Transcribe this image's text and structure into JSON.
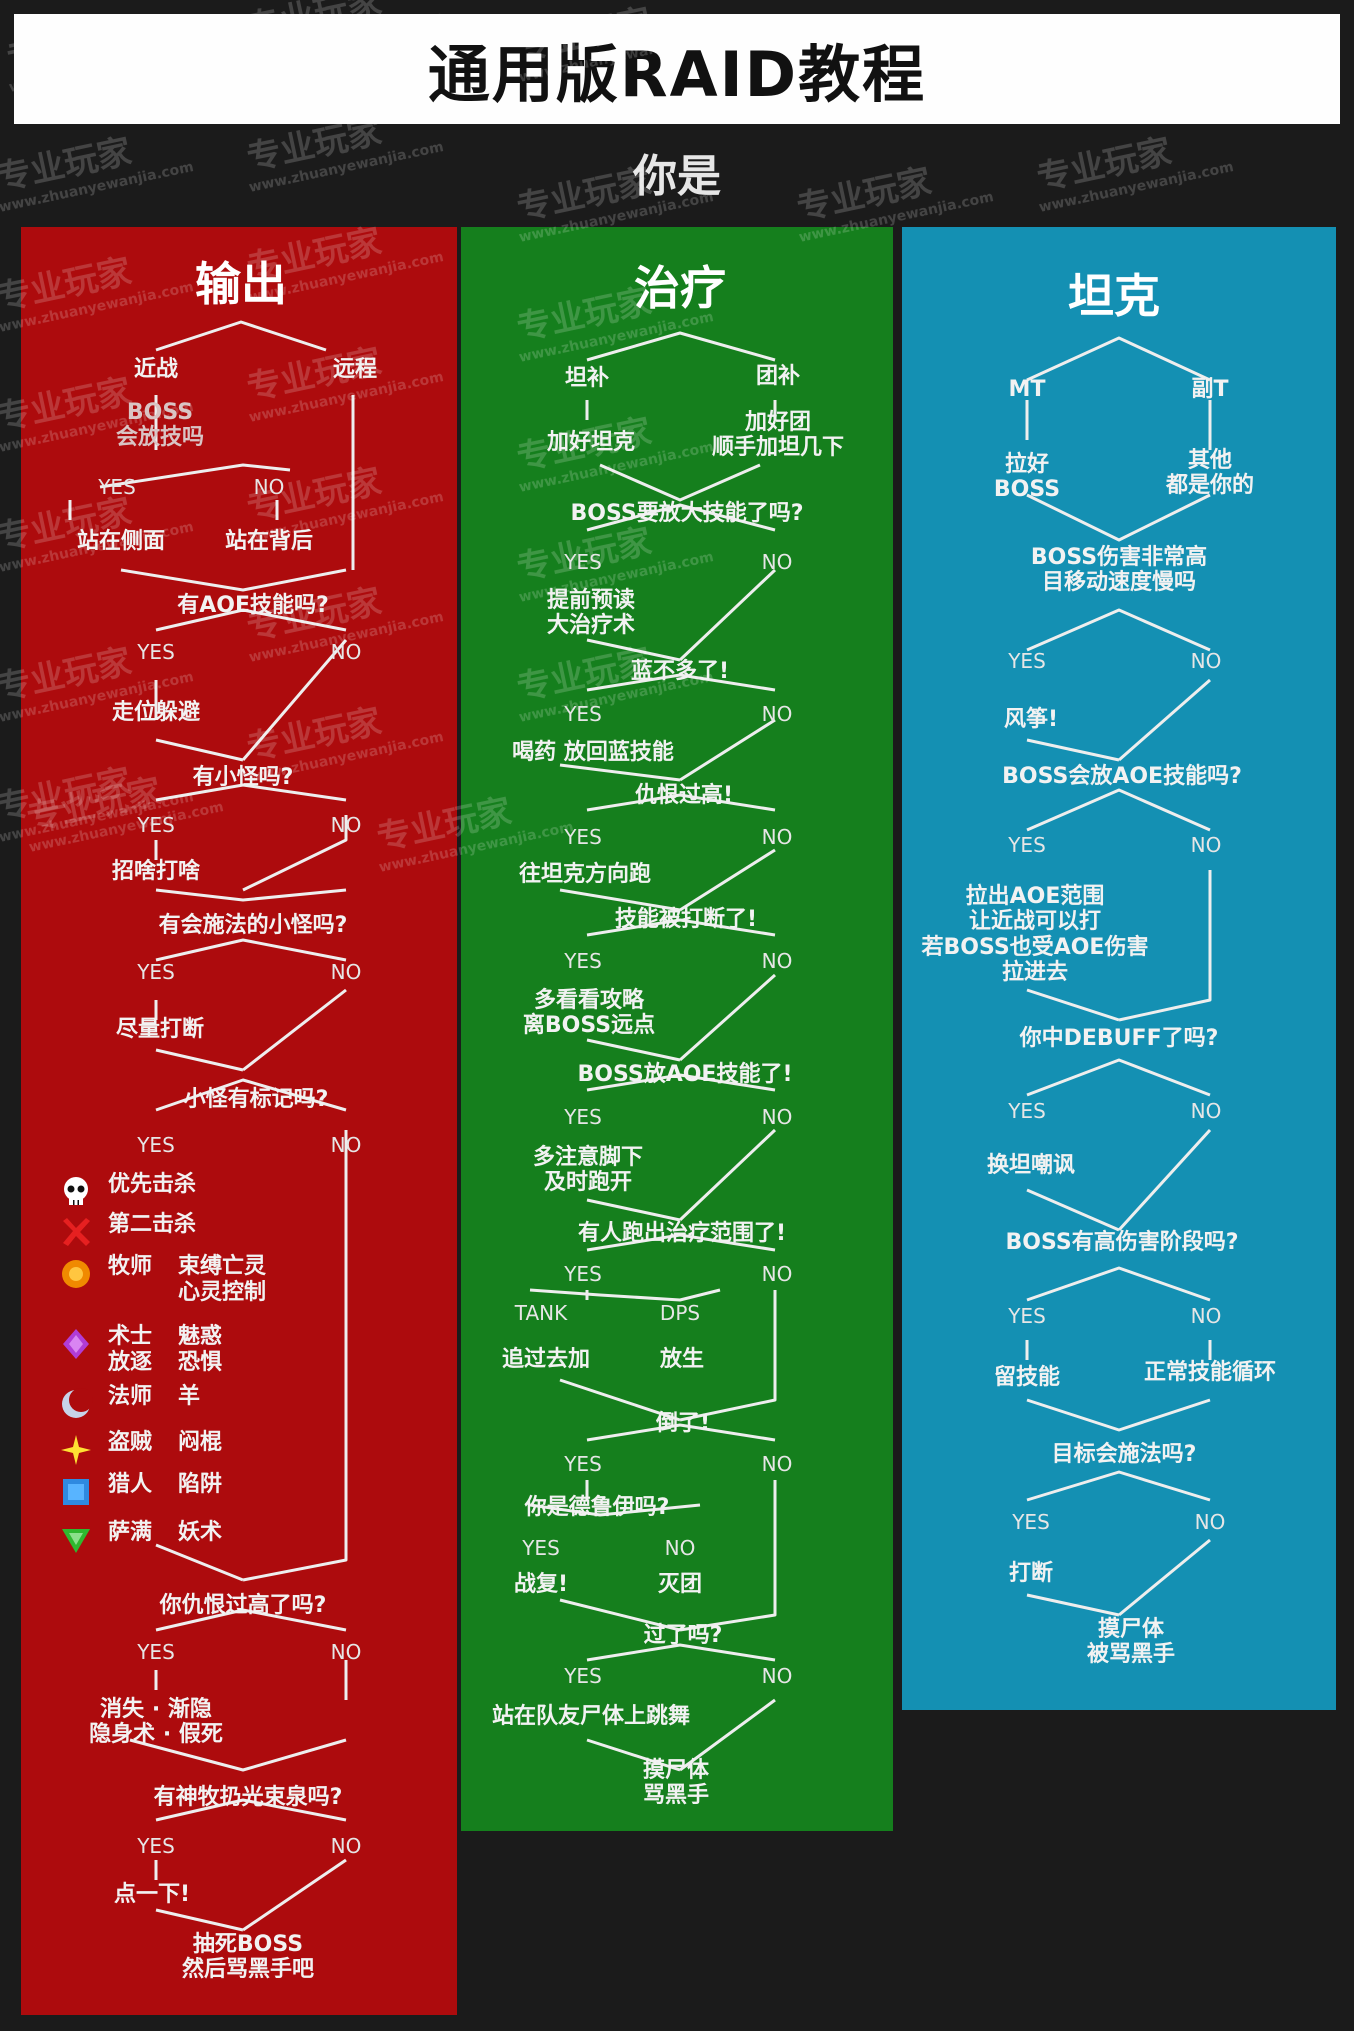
{
  "title": "通用版RAID教程",
  "question": "你是",
  "dps": {
    "header": "输出",
    "melee": "近战",
    "ranged": "远程",
    "boss_q": "BOSS\n会放技吗",
    "yes1": "YES",
    "no1": "NO",
    "side": "站在侧面",
    "back": "站在背后",
    "q_aoe": "有AOE技能吗?",
    "yes2": "YES",
    "no2": "NO",
    "escape": "走位躲避",
    "q_adds": "有小怪吗?",
    "yes3": "YES",
    "no3": "NO",
    "hit_what": "招啥打啥",
    "q_caster": "有会施法的小怪吗?",
    "yes4": "YES",
    "no4": "NO",
    "interrupt": "尽量打断",
    "q_marked": "小怪有标记吗?",
    "yes5": "YES",
    "no5": "NO",
    "legend": [
      {
        "icon": "skull-icon",
        "cls": "优先击杀",
        "skill": ""
      },
      {
        "icon": "cross-icon",
        "cls": "第二击杀",
        "skill": ""
      },
      {
        "icon": "circle-icon",
        "cls": "牧师",
        "skill": "束缚亡灵\n心灵控制"
      },
      {
        "icon": "diamond-icon",
        "cls": "术士\n放逐",
        "skill": "魅惑\n恐惧"
      },
      {
        "icon": "moon-icon",
        "cls": "法师",
        "skill": "羊"
      },
      {
        "icon": "star-icon",
        "cls": "盗贼",
        "skill": "闷棍"
      },
      {
        "icon": "square-icon",
        "cls": "猎人",
        "skill": "陷阱"
      },
      {
        "icon": "triangle-icon",
        "cls": "萨满",
        "skill": "妖术"
      }
    ],
    "q_threat": "你仇恨过高了吗?",
    "yes6": "YES",
    "no6": "NO",
    "drop_threat": "消失 · 渐隐\n隐身术 · 假死",
    "q_priest": "有神牧扔光束泉吗?",
    "yes7": "YES",
    "no7": "NO",
    "click": "点一下!",
    "end": "抽死BOSS\n然后骂黑手吧"
  },
  "heal": {
    "header": "治疗",
    "tank_heal": "坦补",
    "group_heal": "团补",
    "heal_tank": "加好坦克",
    "heal_group": "加好团\n顺手加坦几下",
    "q_big": "BOSS要放大技能了吗?",
    "yes1": "YES",
    "no1": "NO",
    "precast": "提前预读\n大治疗术",
    "q_mana": "蓝不多了!",
    "yes2": "YES",
    "no2": "NO",
    "potion": "喝药  放回蓝技能",
    "q_threat": "仇恨过高!",
    "yes3": "YES",
    "no3": "NO",
    "run_tank": "往坦克方向跑",
    "q_interrupted": "技能被打断了!",
    "yes4": "YES",
    "no4": "NO",
    "guide": "多看看攻略\n离BOSS远点",
    "q_aoe": "BOSS放AOE技能了!",
    "yes5": "YES",
    "no5": "NO",
    "feet": "多注意脚下\n及时跑开",
    "q_range": "有人跑出治疗范围了!",
    "yes6": "YES",
    "no6": "NO",
    "tank": "TANK",
    "dps": "DPS",
    "chase": "追过去加",
    "let_die": "放生",
    "q_dead": "倒了!",
    "yes7": "YES",
    "no7": "NO",
    "q_druid": "你是德鲁伊吗?",
    "yes8": "YES",
    "no8": "NO",
    "rez": "战复!",
    "wipe": "灭团",
    "q_over": "过了吗?",
    "yes9": "YES",
    "no9": "NO",
    "dance": "站在队友尸体上跳舞",
    "end": "摸尸体\n骂黑手"
  },
  "tank": {
    "header": "坦克",
    "mt": "MT",
    "ot": "副T",
    "pull_boss": "拉好\nBOSS",
    "others": "其他\n都是你的",
    "q_dmg": "BOSS伤害非常高\n目移动速度慢吗",
    "yes1": "YES",
    "no1": "NO",
    "kite": "风筝!",
    "q_aoe": "BOSS会放AOE技能吗?",
    "yes2": "YES",
    "no2": "NO",
    "aoe_note": "拉出AOE范围\n让近战可以打\n若BOSS也受AOE伤害\n拉进去",
    "q_debuff": "你中DEBUFF了吗?",
    "yes3": "YES",
    "no3": "NO",
    "swap": "换坦嘲讽",
    "q_phase": "BOSS有高伤害阶段吗?",
    "yes4": "YES",
    "no4": "NO",
    "save_cd": "留技能",
    "normal": "正常技能循环",
    "q_cast": "目标会施法吗?",
    "yes5": "YES",
    "no5": "NO",
    "interrupt": "打断",
    "end": "摸尸体\n被骂黑手"
  },
  "watermark": "专业玩家",
  "watermark_url": "www.zhuanyewanjia.com",
  "colors": {
    "dps": "#ad0b0d",
    "heal": "#157f1d",
    "tank": "#1490b3",
    "line": "#eeeeee"
  }
}
